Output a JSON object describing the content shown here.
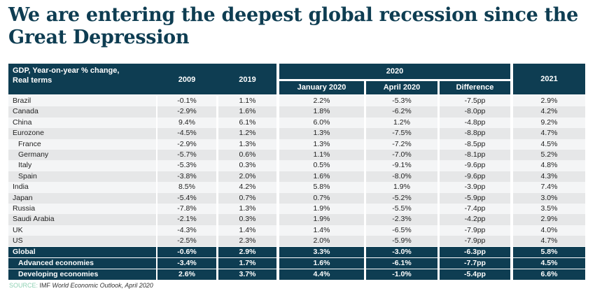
{
  "title": "We are entering the deepest global recession since the Great Depression",
  "table": {
    "header": {
      "label_line1": "GDP, Year-on-year % change,",
      "label_line2": "Real terms",
      "col_2009": "2009",
      "col_2019": "2019",
      "group_2020": "2020",
      "col_jan2020": "January 2020",
      "col_apr2020": "April 2020",
      "col_diff": "Difference",
      "col_2021": "2021"
    },
    "rows": [
      {
        "name": "Brazil",
        "indent": false,
        "values": [
          "-0.1%",
          "1.1%",
          "2.2%",
          "-5.3%",
          "-7.5pp",
          "2.9%"
        ]
      },
      {
        "name": "Canada",
        "indent": false,
        "values": [
          "-2.9%",
          "1.6%",
          "1.8%",
          "-6.2%",
          "-8.0pp",
          "4.2%"
        ]
      },
      {
        "name": "China",
        "indent": false,
        "values": [
          "9.4%",
          "6.1%",
          "6.0%",
          "1.2%",
          "-4.8pp",
          "9.2%"
        ]
      },
      {
        "name": "Eurozone",
        "indent": false,
        "values": [
          "-4.5%",
          "1.2%",
          "1.3%",
          "-7.5%",
          "-8.8pp",
          "4.7%"
        ]
      },
      {
        "name": "France",
        "indent": true,
        "values": [
          "-2.9%",
          "1.3%",
          "1.3%",
          "-7.2%",
          "-8.5pp",
          "4.5%"
        ]
      },
      {
        "name": "Germany",
        "indent": true,
        "values": [
          "-5.7%",
          "0.6%",
          "1.1%",
          "-7.0%",
          "-8.1pp",
          "5.2%"
        ]
      },
      {
        "name": "Italy",
        "indent": true,
        "values": [
          "-5.3%",
          "0.3%",
          "0.5%",
          "-9.1%",
          "-9.6pp",
          "4.8%"
        ]
      },
      {
        "name": "Spain",
        "indent": true,
        "values": [
          "-3.8%",
          "2.0%",
          "1.6%",
          "-8.0%",
          "-9.6pp",
          "4.3%"
        ]
      },
      {
        "name": "India",
        "indent": false,
        "values": [
          "8.5%",
          "4.2%",
          "5.8%",
          "1.9%",
          "-3.9pp",
          "7.4%"
        ]
      },
      {
        "name": "Japan",
        "indent": false,
        "values": [
          "-5.4%",
          "0.7%",
          "0.7%",
          "-5.2%",
          "-5.9pp",
          "3.0%"
        ]
      },
      {
        "name": "Russia",
        "indent": false,
        "values": [
          "-7.8%",
          "1.3%",
          "1.9%",
          "-5.5%",
          "-7.4pp",
          "3.5%"
        ]
      },
      {
        "name": "Saudi Arabia",
        "indent": false,
        "values": [
          "-2.1%",
          "0.3%",
          "1.9%",
          "-2.3%",
          "-4.2pp",
          "2.9%"
        ]
      },
      {
        "name": "UK",
        "indent": false,
        "values": [
          "-4.3%",
          "1.4%",
          "1.4%",
          "-6.5%",
          "-7.9pp",
          "4.0%"
        ]
      },
      {
        "name": "US",
        "indent": false,
        "values": [
          "-2.5%",
          "2.3%",
          "2.0%",
          "-5.9%",
          "-7.9pp",
          "4.7%"
        ]
      }
    ],
    "summary_rows": [
      {
        "name": "Global",
        "indent": false,
        "values": [
          "-0.6%",
          "2.9%",
          "3.3%",
          "-3.0%",
          "-6.3pp",
          "5.8%"
        ]
      },
      {
        "name": "Advanced economies",
        "indent": true,
        "values": [
          "-3.4%",
          "1.7%",
          "1.6%",
          "-6.1%",
          "-7.7pp",
          "4.5%"
        ]
      },
      {
        "name": "Developing economies",
        "indent": true,
        "values": [
          "2.6%",
          "3.7%",
          "4.4%",
          "-1.0%",
          "-5.4pp",
          "6.6%"
        ]
      }
    ]
  },
  "source": {
    "label": "SOURCE:",
    "publisher": "IMF",
    "title": "World Economic Outlook, April 2020"
  },
  "colors": {
    "header_bg": "#0e3d52",
    "source_label": "#8fd1b4",
    "row_light": "#f4f5f6",
    "row_dark": "#e6e7e8"
  }
}
